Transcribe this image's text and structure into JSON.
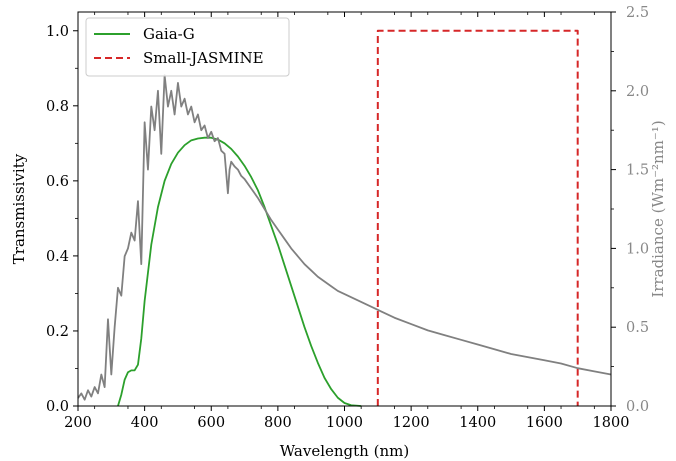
{
  "chart_data": {
    "type": "line",
    "xlabel": "Wavelength (nm)",
    "ylabel": "Transmissivity",
    "y2label": "Irradiance (Wm⁻²nm⁻¹)",
    "xlim": [
      200,
      1800
    ],
    "ylim": [
      0,
      1.05
    ],
    "y2lim": [
      0,
      2.5
    ],
    "xticks": [
      200,
      400,
      600,
      800,
      1000,
      1200,
      1400,
      1600,
      1800
    ],
    "yticks": [
      "0.0",
      "0.2",
      "0.4",
      "0.6",
      "0.8",
      "1.0"
    ],
    "y2ticks": [
      "0.0",
      "0.5",
      "1.0",
      "1.5",
      "2.0",
      "2.5"
    ],
    "legend_position": "top-left",
    "series": [
      {
        "name": "Gaia-G",
        "axis": "left",
        "color": "#2ca02c",
        "style": "solid",
        "x": [
          320,
          330,
          340,
          350,
          360,
          370,
          380,
          390,
          400,
          420,
          440,
          460,
          480,
          500,
          520,
          540,
          560,
          580,
          600,
          620,
          640,
          660,
          680,
          700,
          720,
          740,
          760,
          780,
          800,
          820,
          840,
          860,
          880,
          900,
          920,
          940,
          960,
          980,
          1000,
          1020,
          1050
        ],
        "values": [
          0.0,
          0.03,
          0.07,
          0.09,
          0.095,
          0.095,
          0.11,
          0.18,
          0.28,
          0.43,
          0.53,
          0.6,
          0.645,
          0.675,
          0.695,
          0.708,
          0.713,
          0.715,
          0.715,
          0.71,
          0.7,
          0.685,
          0.665,
          0.64,
          0.61,
          0.575,
          0.53,
          0.48,
          0.43,
          0.375,
          0.32,
          0.265,
          0.21,
          0.16,
          0.115,
          0.075,
          0.045,
          0.022,
          0.008,
          0.002,
          0.0
        ]
      },
      {
        "name": "Small-JASMINE",
        "axis": "left",
        "color": "#d62728",
        "style": "dashed",
        "x": [
          1100,
          1100,
          1700,
          1700
        ],
        "values": [
          0.0,
          1.0,
          1.0,
          0.0
        ]
      },
      {
        "name": "",
        "axis": "right",
        "color": "#808080",
        "style": "solid",
        "x": [
          200,
          210,
          220,
          230,
          240,
          250,
          260,
          270,
          280,
          290,
          300,
          310,
          320,
          330,
          340,
          350,
          360,
          370,
          380,
          390,
          400,
          410,
          420,
          430,
          440,
          450,
          460,
          470,
          480,
          490,
          500,
          510,
          520,
          530,
          540,
          550,
          560,
          570,
          580,
          590,
          600,
          610,
          620,
          630,
          640,
          650,
          655,
          660,
          670,
          680,
          690,
          700,
          720,
          740,
          760,
          780,
          800,
          820,
          840,
          860,
          880,
          900,
          920,
          940,
          960,
          980,
          1000,
          1050,
          1100,
          1150,
          1200,
          1250,
          1300,
          1350,
          1400,
          1450,
          1500,
          1550,
          1600,
          1650,
          1700,
          1750,
          1800
        ],
        "values": [
          0.05,
          0.08,
          0.04,
          0.1,
          0.06,
          0.12,
          0.08,
          0.2,
          0.12,
          0.55,
          0.2,
          0.5,
          0.75,
          0.7,
          0.95,
          1.0,
          1.1,
          1.05,
          1.3,
          0.9,
          1.8,
          1.5,
          1.9,
          1.75,
          2.0,
          1.6,
          2.1,
          1.9,
          2.0,
          1.85,
          2.05,
          1.9,
          1.95,
          1.85,
          1.9,
          1.8,
          1.85,
          1.75,
          1.78,
          1.7,
          1.74,
          1.68,
          1.7,
          1.62,
          1.6,
          1.35,
          1.5,
          1.55,
          1.52,
          1.5,
          1.46,
          1.44,
          1.38,
          1.32,
          1.25,
          1.18,
          1.12,
          1.06,
          1.0,
          0.95,
          0.9,
          0.86,
          0.82,
          0.79,
          0.76,
          0.73,
          0.71,
          0.66,
          0.61,
          0.56,
          0.52,
          0.48,
          0.45,
          0.42,
          0.39,
          0.36,
          0.33,
          0.31,
          0.29,
          0.27,
          0.24,
          0.22,
          0.2
        ]
      }
    ]
  }
}
